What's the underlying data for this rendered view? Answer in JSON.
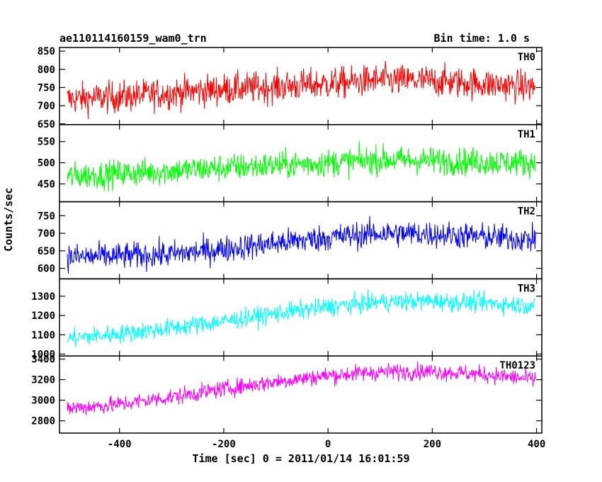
{
  "header": {
    "obs_id": "ae110114160159_wam0_trn",
    "bin_time": "Bin time: 1.0 s"
  },
  "chart_data": {
    "type": "line",
    "xlabel": "Time [sec] 0 = 2011/01/14 16:01:59",
    "ylabel": "Counts/sec",
    "xlim": [
      -515,
      410
    ],
    "x_ticks": [
      -400,
      -200,
      0,
      200,
      400
    ],
    "x_range_data": [
      -500,
      398
    ],
    "panels": [
      {
        "name": "TH0",
        "color": "#ff0000",
        "ylim": [
          648,
          860
        ],
        "y_ticks": [
          650,
          700,
          750,
          800,
          850
        ],
        "trend_x": [
          -500,
          -400,
          -300,
          -200,
          -100,
          0,
          100,
          200,
          300,
          400
        ],
        "trend_y": [
          718,
          724,
          735,
          745,
          752,
          760,
          770,
          768,
          760,
          750
        ],
        "amplitude": 40
      },
      {
        "name": "TH1",
        "color": "#00ff00",
        "ylim": [
          408,
          590
        ],
        "y_ticks": [
          450,
          500,
          550
        ],
        "trend_x": [
          -500,
          -400,
          -300,
          -200,
          -100,
          0,
          100,
          200,
          300,
          400
        ],
        "trend_y": [
          468,
          474,
          481,
          488,
          494,
          500,
          507,
          505,
          502,
          500
        ],
        "amplitude": 30
      },
      {
        "name": "TH2",
        "color": "#0000ff",
        "ylim": [
          570,
          790
        ],
        "y_ticks": [
          600,
          650,
          700,
          750
        ],
        "trend_x": [
          -500,
          -400,
          -300,
          -200,
          -100,
          0,
          100,
          200,
          300,
          400
        ],
        "trend_y": [
          632,
          635,
          640,
          655,
          672,
          688,
          700,
          698,
          690,
          682
        ],
        "amplitude": 35
      },
      {
        "name": "TH3",
        "color": "#00ffff",
        "ylim": [
          990,
          1390
        ],
        "y_ticks": [
          1000,
          1100,
          1200,
          1300
        ],
        "trend_x": [
          -500,
          -400,
          -300,
          -200,
          -100,
          0,
          100,
          200,
          300,
          400
        ],
        "trend_y": [
          1080,
          1105,
          1135,
          1170,
          1210,
          1245,
          1270,
          1275,
          1265,
          1250
        ],
        "amplitude": 45
      },
      {
        "name": "TH0123",
        "color": "#ff00ff",
        "ylim": [
          2680,
          3430
        ],
        "y_ticks": [
          2800,
          3000,
          3200,
          3400
        ],
        "trend_x": [
          -500,
          -400,
          -300,
          -200,
          -100,
          0,
          100,
          200,
          300,
          400
        ],
        "trend_y": [
          2920,
          2960,
          3030,
          3110,
          3180,
          3240,
          3275,
          3280,
          3250,
          3200
        ],
        "amplitude": 75
      }
    ]
  }
}
